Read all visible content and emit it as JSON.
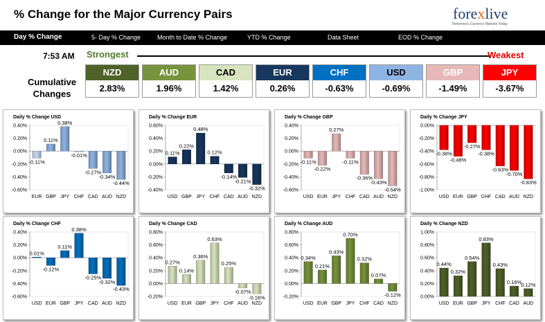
{
  "header": {
    "title": "% Change for the Major Currency Pairs",
    "logo_text_a": "fore",
    "logo_text_x": "x",
    "logo_text_b": "live",
    "logo_tagline": "Tomorrow's Currency Markets Today"
  },
  "nav": {
    "tabs": [
      {
        "label": "Day % Change",
        "active": true
      },
      {
        "label": "5- Day % Change",
        "active": false
      },
      {
        "label": "Month to Date % Change",
        "active": false
      },
      {
        "label": "YTD % Change",
        "active": false
      },
      {
        "label": "Data Sheet",
        "active": false
      },
      {
        "label": "EOD % Change",
        "active": false
      }
    ]
  },
  "summary": {
    "time": "7:53 AM",
    "strongest_label": "Strongest",
    "weakest_label": "Weakest",
    "cumulative_label_1": "Cumulative",
    "cumulative_label_2": "Changes",
    "currencies": [
      {
        "name": "NZD",
        "value": "2.83%",
        "color": "#4f6228",
        "text": "#ffffff"
      },
      {
        "name": "AUD",
        "value": "1.96%",
        "color": "#77933c",
        "text": "#ffffff"
      },
      {
        "name": "CAD",
        "value": "1.42%",
        "color": "#d7e4bd",
        "text": "#000000"
      },
      {
        "name": "EUR",
        "value": "0.26%",
        "color": "#17375e",
        "text": "#ffffff"
      },
      {
        "name": "CHF",
        "value": "-0.63%",
        "color": "#0070c0",
        "text": "#ffffff"
      },
      {
        "name": "USD",
        "value": "-0.69%",
        "color": "#8eb4e3",
        "text": "#000000"
      },
      {
        "name": "GBP",
        "value": "-1.49%",
        "color": "#e6b9b8",
        "text": "#ffffff"
      },
      {
        "name": "JPY",
        "value": "-3.67%",
        "color": "#ff0000",
        "text": "#ffffff"
      }
    ]
  },
  "chart_data": [
    {
      "type": "bar",
      "title": "Daily % Change USD",
      "categories": [
        "EUR",
        "GBP",
        "JPY",
        "CHF",
        "CAD",
        "AUD",
        "NZD"
      ],
      "values": [
        -0.11,
        0.11,
        0.38,
        -0.01,
        -0.27,
        -0.34,
        -0.44
      ],
      "ylim": [
        -0.6,
        0.4
      ],
      "ticks": [
        "0.40%",
        "0.20%",
        "0.00%",
        "-0.20%",
        "-0.40%",
        "-0.60%"
      ],
      "colors": [
        "#c6d9f1",
        "#8eb4e3",
        "#8eb4e3",
        "#c6d9f1",
        "#8eb4e3",
        "#8eb4e3",
        "#8eb4e3"
      ]
    },
    {
      "type": "bar",
      "title": "Daily % Change EUR",
      "categories": [
        "USD",
        "GBP",
        "JPY",
        "CHF",
        "CAD",
        "AUD",
        "NZD"
      ],
      "values": [
        0.11,
        0.22,
        0.48,
        0.12,
        -0.14,
        -0.21,
        -0.32
      ],
      "ylim": [
        -0.4,
        0.6
      ],
      "ticks": [
        "0.60%",
        "0.40%",
        "0.20%",
        "0.00%",
        "-0.20%",
        "-0.40%"
      ],
      "colors": [
        "#17375e",
        "#17375e",
        "#17375e",
        "#17375e",
        "#17375e",
        "#17375e",
        "#17375e"
      ]
    },
    {
      "type": "bar",
      "title": "Daily % Change GBP",
      "categories": [
        "USD",
        "EUR",
        "JPY",
        "CHF",
        "CAD",
        "AUD",
        "NZD"
      ],
      "values": [
        -0.11,
        -0.22,
        0.27,
        -0.11,
        -0.36,
        -0.43,
        -0.54
      ],
      "ylim": [
        -0.6,
        0.4
      ],
      "ticks": [
        "0.40%",
        "0.20%",
        "0.00%",
        "-0.20%",
        "-0.40%",
        "-0.60%"
      ],
      "colors": [
        "#e6b9b8",
        "#e6b9b8",
        "#e6b9b8",
        "#e6b9b8",
        "#e6b9b8",
        "#e6b9b8",
        "#e6b9b8"
      ]
    },
    {
      "type": "bar",
      "title": "Daily % Change JPY",
      "categories": [
        "USD",
        "EUR",
        "GBP",
        "CHF",
        "CAD",
        "AUD",
        "NZD"
      ],
      "values": [
        -0.38,
        -0.48,
        -0.27,
        -0.38,
        -0.63,
        -0.7,
        -0.83
      ],
      "ylim": [
        -1.0,
        0.0
      ],
      "ticks": [
        "0.00%",
        "-0.20%",
        "-0.40%",
        "-0.60%",
        "-0.80%",
        "-1.00%"
      ],
      "colors": [
        "#ff0000",
        "#ff0000",
        "#ff0000",
        "#ff0000",
        "#ff0000",
        "#ff0000",
        "#ff0000"
      ]
    },
    {
      "type": "bar",
      "title": "Daily % Change CHF",
      "categories": [
        "USD",
        "EUR",
        "GBP",
        "JPY",
        "CAD",
        "AUD",
        "NZD"
      ],
      "values": [
        0.01,
        -0.12,
        0.11,
        0.38,
        -0.25,
        -0.32,
        -0.43
      ],
      "ylim": [
        -0.6,
        0.4
      ],
      "ticks": [
        "0.40%",
        "0.20%",
        "0.00%",
        "-0.20%",
        "-0.40%",
        "-0.60%"
      ],
      "colors": [
        "#0070c0",
        "#0070c0",
        "#0070c0",
        "#0070c0",
        "#0070c0",
        "#0070c0",
        "#0070c0"
      ]
    },
    {
      "type": "bar",
      "title": "Daily % Change CAD",
      "categories": [
        "USD",
        "EUR",
        "GBP",
        "JPY",
        "CHF",
        "AUD",
        "NZD"
      ],
      "values": [
        0.27,
        0.14,
        0.36,
        0.63,
        0.25,
        -0.07,
        -0.16
      ],
      "ylim": [
        -0.2,
        0.8
      ],
      "ticks": [
        "0.80%",
        "0.60%",
        "0.40%",
        "0.20%",
        "0.00%",
        "-0.20%"
      ],
      "colors": [
        "#d7e4bd",
        "#d7e4bd",
        "#d7e4bd",
        "#d7e4bd",
        "#d7e4bd",
        "#d7e4bd",
        "#d7e4bd"
      ]
    },
    {
      "type": "bar",
      "title": "Daily % Change AUD",
      "categories": [
        "USD",
        "EUR",
        "GBP",
        "JPY",
        "CHF",
        "CAD",
        "NZD"
      ],
      "values": [
        0.34,
        0.21,
        0.43,
        0.7,
        0.32,
        0.07,
        -0.12
      ],
      "ylim": [
        -0.2,
        0.8
      ],
      "ticks": [
        "0.80%",
        "0.60%",
        "0.40%",
        "0.20%",
        "0.00%",
        "-0.20%"
      ],
      "colors": [
        "#77933c",
        "#77933c",
        "#77933c",
        "#77933c",
        "#77933c",
        "#77933c",
        "#77933c"
      ]
    },
    {
      "type": "bar",
      "title": "Daily % Change NZD",
      "categories": [
        "USD",
        "EUR",
        "GBP",
        "JPY",
        "CHF",
        "CAD",
        "AUD"
      ],
      "values": [
        0.44,
        0.32,
        0.54,
        0.83,
        0.43,
        0.16,
        0.12
      ],
      "ylim": [
        0.0,
        1.0
      ],
      "ticks": [
        "1.00%",
        "0.80%",
        "0.60%",
        "0.40%",
        "0.20%",
        "0.00%"
      ],
      "colors": [
        "#4f6228",
        "#4f6228",
        "#4f6228",
        "#4f6228",
        "#4f6228",
        "#4f6228",
        "#4f6228"
      ]
    }
  ]
}
